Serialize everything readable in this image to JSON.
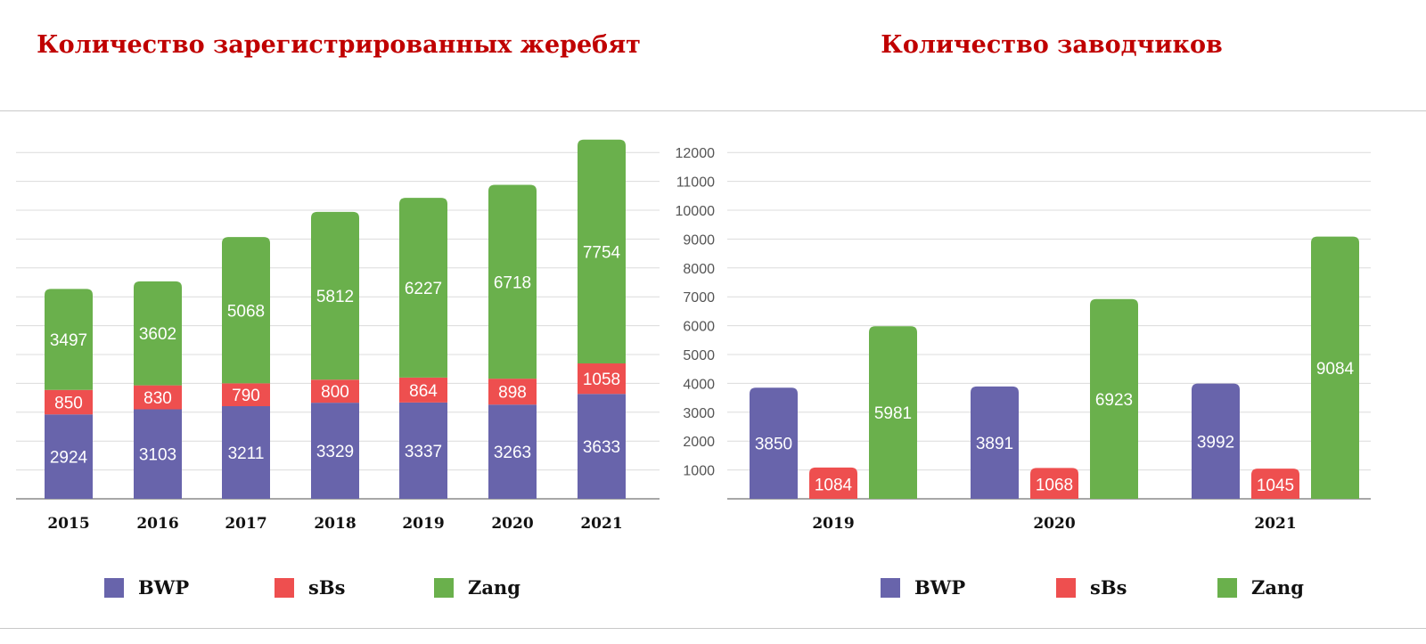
{
  "colors": {
    "title": "#c00000",
    "bwp": "#6864ab",
    "sbs": "#ee4f4f",
    "zang": "#6ab04c",
    "grid": "#dcdcdc",
    "axis": "#8a8a8a"
  },
  "legend": [
    {
      "key": "bwp",
      "label": "BWP"
    },
    {
      "key": "sbs",
      "label": "sBs"
    },
    {
      "key": "zang",
      "label": "Zang"
    }
  ],
  "chart_data": [
    {
      "type": "bar",
      "stacked": true,
      "title": "Количество зарегистрированных жеребят",
      "categories": [
        "2015",
        "2016",
        "2017",
        "2018",
        "2019",
        "2020",
        "2021"
      ],
      "series": [
        {
          "name": "BWP",
          "values": [
            2924,
            3103,
            3211,
            3329,
            3337,
            3263,
            3633
          ]
        },
        {
          "name": "sBs",
          "values": [
            850,
            830,
            790,
            800,
            864,
            898,
            1058
          ]
        },
        {
          "name": "Zang",
          "values": [
            3497,
            3602,
            5068,
            5812,
            6227,
            6718,
            7754
          ]
        }
      ],
      "ylim": [
        0,
        12000
      ],
      "grid": true,
      "y_tick_labels_shown": false,
      "data_labels": true,
      "legend_position": "bottom"
    },
    {
      "type": "bar",
      "stacked": false,
      "title": "Количество заводчиков",
      "categories": [
        "2019",
        "2020",
        "2021"
      ],
      "series": [
        {
          "name": "BWP",
          "values": [
            3850,
            3891,
            3992
          ]
        },
        {
          "name": "sBs",
          "values": [
            1084,
            1068,
            1045
          ]
        },
        {
          "name": "Zang",
          "values": [
            5981,
            6923,
            9084
          ]
        }
      ],
      "ylim": [
        0,
        12000
      ],
      "yticks": [
        "1000",
        "2000",
        "3000",
        "4000",
        "5000",
        "6000",
        "7000",
        "8000",
        "9000",
        "10000",
        "11000",
        "12000"
      ],
      "grid": true,
      "data_labels": true,
      "legend_position": "bottom"
    }
  ]
}
